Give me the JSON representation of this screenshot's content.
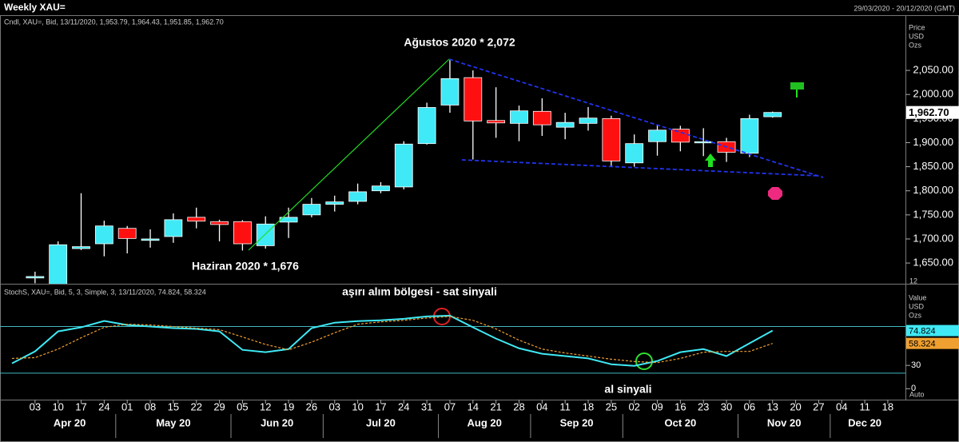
{
  "header": {
    "title": "Weekly XAU=",
    "date_range": "29/03/2020 - 20/12/2020 (GMT)"
  },
  "chart_data": [
    {
      "type": "candlestick",
      "legend_text": "Cndl, XAU=, Bid, 13/11/2020, 1,953.79, 1,964.43, 1,951.85, 1,962.70",
      "axis_label": [
        "Price",
        "USD",
        "Ozs"
      ],
      "corner_label": "12",
      "up_color": "#3fe9f5",
      "down_color": "#ff1010",
      "ylim": [
        1607,
        2163
      ],
      "yticks": [
        {
          "value": 2050,
          "label": "2,050.00"
        },
        {
          "value": 2000,
          "label": "2,000.00"
        },
        {
          "value": 1950,
          "label": "1,950.00"
        },
        {
          "value": 1900,
          "label": "1,900.00"
        },
        {
          "value": 1850,
          "label": "1,850.00"
        },
        {
          "value": 1800,
          "label": "1,800.00"
        },
        {
          "value": 1750,
          "label": "1,750.00"
        },
        {
          "value": 1700,
          "label": "1,700.00"
        },
        {
          "value": 1650,
          "label": "1,650.00"
        }
      ],
      "last_label": "1,962.70",
      "annotations": [
        "Ağustos 2020 * 2,072",
        "Haziran 2020 * 1,676"
      ],
      "open": [
        null,
        1619,
        1600,
        1680,
        1690,
        1722,
        1697,
        1705,
        1745,
        1736,
        1736,
        1686,
        1735,
        1750,
        1772,
        1778,
        1800,
        1808,
        1898,
        1978,
        2035,
        1946,
        1940,
        1965,
        1932,
        1940,
        1950,
        1858,
        1902,
        1928,
        1900,
        1902,
        1878,
        1953.79,
        null,
        null,
        null,
        null,
        null
      ],
      "high": [
        null,
        1632,
        1695,
        1795,
        1738,
        1727,
        1720,
        1753,
        1765,
        1740,
        1739,
        1747,
        1765,
        1785,
        1790,
        1815,
        1818,
        1903,
        1983,
        2072,
        2050,
        2015,
        1977,
        1992,
        1962,
        1974,
        1956,
        1917,
        1937,
        1935,
        1930,
        1910,
        1958,
        1964.43,
        null,
        null,
        null,
        null,
        null
      ],
      "low": [
        null,
        1608,
        1590,
        1677,
        1664,
        1670,
        1682,
        1692,
        1722,
        1695,
        1676,
        1680,
        1702,
        1745,
        1757,
        1772,
        1795,
        1803,
        1896,
        1962,
        1865,
        1910,
        1903,
        1914,
        1907,
        1925,
        1850,
        1850,
        1873,
        1882,
        1872,
        1860,
        1870,
        1951.85,
        null,
        null,
        null,
        null,
        null
      ],
      "close": [
        null,
        1622,
        1688,
        1684,
        1727,
        1701,
        1700,
        1740,
        1737,
        1730,
        1690,
        1731,
        1745,
        1772,
        1777,
        1798,
        1810,
        1897,
        1973,
        2033,
        1945,
        1941,
        1966,
        1937,
        1942,
        1951,
        1862,
        1898,
        1926,
        1901,
        1902,
        1880,
        1950,
        1962.7,
        null,
        null,
        null,
        null,
        null
      ]
    },
    {
      "type": "line",
      "legend_text": "StochS, XAU=, Bid,  5, 3, Simple, 3, 13/11/2020, 74.824, 58.324",
      "axis_label": [
        "Value",
        "USD",
        "Ozs"
      ],
      "corner_label": "Auto",
      "annotations": [
        "aşırı alım bölgesi - sat sinyali",
        "al sinyali"
      ],
      "categories": [
        null,
        "03",
        "10",
        "17",
        "24",
        "01",
        "08",
        "15",
        "22",
        "29",
        "05",
        "12",
        "19",
        "26",
        "03",
        "10",
        "17",
        "24",
        "31",
        "07",
        "14",
        "21",
        "28",
        "04",
        "11",
        "18",
        "25",
        "02",
        "09",
        "16",
        "23",
        "30",
        "06",
        "13",
        "20",
        "27",
        "04",
        "11",
        "18"
      ],
      "months": [
        "Apr 20",
        "May 20",
        "Jun 20",
        "Jul 20",
        "Aug 20",
        "Sep 20",
        "Oct 20",
        "Nov 20",
        "Dec 20"
      ],
      "ylim": [
        -12,
        132
      ],
      "yticks": [
        30,
        0
      ],
      "levels": [
        80,
        20
      ],
      "series": [
        {
          "color": "#3fe9f5",
          "last_label": "74.824",
          "values": [
            32.6,
            48,
            73.8,
            79,
            87.2,
            82,
            80,
            78,
            77,
            73.8,
            50,
            47,
            51,
            78,
            85,
            87,
            88,
            90,
            93,
            94,
            79,
            64.5,
            52,
            45,
            42,
            39,
            31.5,
            29.4,
            35.7,
            47,
            51,
            42,
            58.4,
            74.824,
            null,
            null,
            null,
            null,
            null
          ]
        },
        {
          "color": "#f0a030",
          "last_label": "58.324",
          "values": [
            39,
            40,
            51,
            65.6,
            79,
            83,
            82,
            80,
            78,
            76,
            66.6,
            57,
            50,
            60,
            72,
            83,
            86,
            88,
            91,
            93,
            88,
            77,
            62.5,
            51,
            46,
            42,
            38,
            35,
            33.6,
            39,
            47,
            48,
            48,
            58.324,
            null,
            null,
            null,
            null,
            null
          ]
        }
      ]
    }
  ]
}
